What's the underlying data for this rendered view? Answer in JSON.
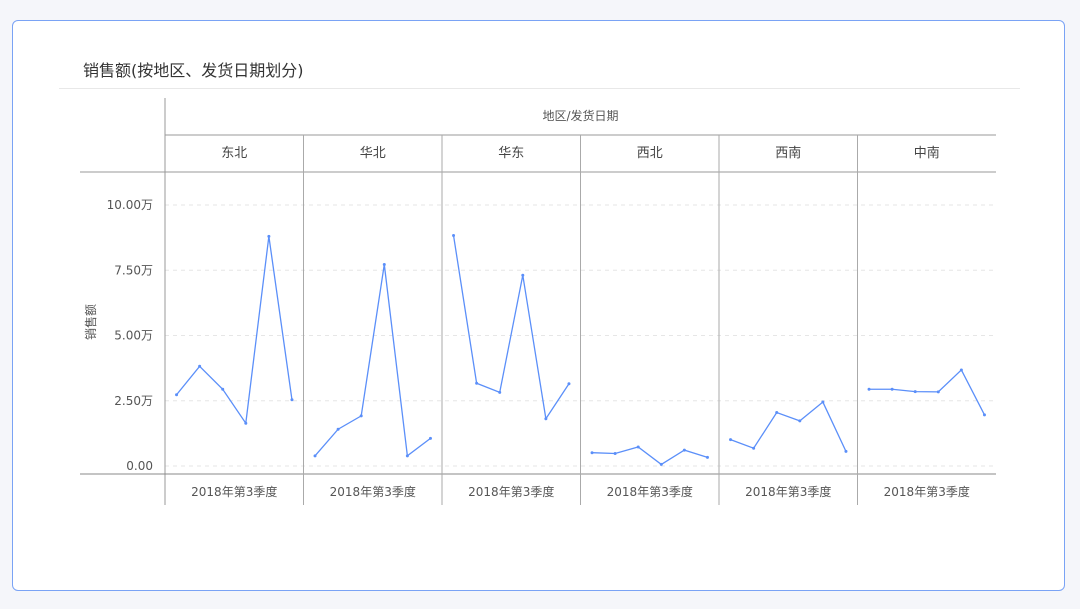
{
  "title": "销售额(按地区、发货日期划分)",
  "chart_data": {
    "type": "line",
    "title": "销售额(按地区、发货日期划分)",
    "column_header": "地区/发货日期",
    "ylabel": "销售额",
    "ylim": [
      0,
      11.2
    ],
    "yticks": [
      "0.00",
      "2.50万",
      "5.00万",
      "7.50万",
      "10.00万"
    ],
    "ytick_values": [
      0,
      2.5,
      5,
      7.5,
      10
    ],
    "unit": "万",
    "grid": true,
    "color": "#5b8ff9",
    "panels": [
      {
        "region": "东北",
        "category": "2018年第3季度",
        "values": [
          2.73,
          3.82,
          2.94,
          1.64,
          8.8,
          2.54
        ]
      },
      {
        "region": "华北",
        "category": "2018年第3季度",
        "values": [
          0.39,
          1.41,
          1.92,
          7.72,
          0.39,
          1.06
        ]
      },
      {
        "region": "华东",
        "category": "2018年第3季度",
        "values": [
          8.83,
          3.17,
          2.82,
          7.31,
          1.81,
          3.15
        ]
      },
      {
        "region": "西北",
        "category": "2018年第3季度",
        "values": [
          0.51,
          0.48,
          0.73,
          0.06,
          0.61,
          0.33
        ]
      },
      {
        "region": "西南",
        "category": "2018年第3季度",
        "values": [
          1.01,
          0.68,
          2.05,
          1.73,
          2.45,
          0.56
        ]
      },
      {
        "region": "中南",
        "category": "2018年第3季度",
        "values": [
          2.94,
          2.94,
          2.85,
          2.84,
          3.68,
          1.96
        ]
      }
    ]
  }
}
